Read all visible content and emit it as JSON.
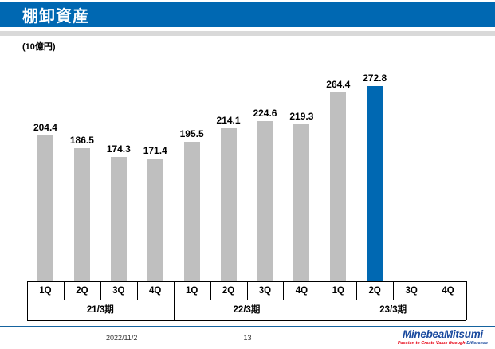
{
  "header": {
    "title": "棚卸資産"
  },
  "chart_data": {
    "type": "bar",
    "title": "棚卸資産",
    "unit_label": "(10億円)",
    "ylabel": "10億円",
    "categories": [
      "1Q",
      "2Q",
      "3Q",
      "4Q",
      "1Q",
      "2Q",
      "3Q",
      "4Q",
      "1Q",
      "2Q",
      "3Q",
      "4Q"
    ],
    "group_labels": [
      "21/3期",
      "22/3期",
      "23/3期"
    ],
    "group_size": 4,
    "values": [
      204.4,
      186.5,
      174.3,
      171.4,
      195.5,
      214.1,
      224.6,
      219.3,
      264.4,
      272.8,
      null,
      null
    ],
    "highlight_index": 9,
    "ylim": [
      0,
      300
    ],
    "grid": false,
    "legend": false
  },
  "colors": {
    "header_blue": "#0068b2",
    "bar_gray": "#bfbfbf",
    "bar_highlight_blue": "#0068b2",
    "divider_gray": "#d9d9d9",
    "footer_line_blue": "#15639f",
    "logo_blue": "#1a4a9e",
    "logo_red": "#e60012",
    "axis_black": "#000000"
  },
  "footer": {
    "date": "2022/11/2",
    "page_number": "13",
    "logo_text": "MinebeaMitsumi",
    "tagline_red": "Passion to Create Value through",
    "tagline_blue": "Difference"
  }
}
